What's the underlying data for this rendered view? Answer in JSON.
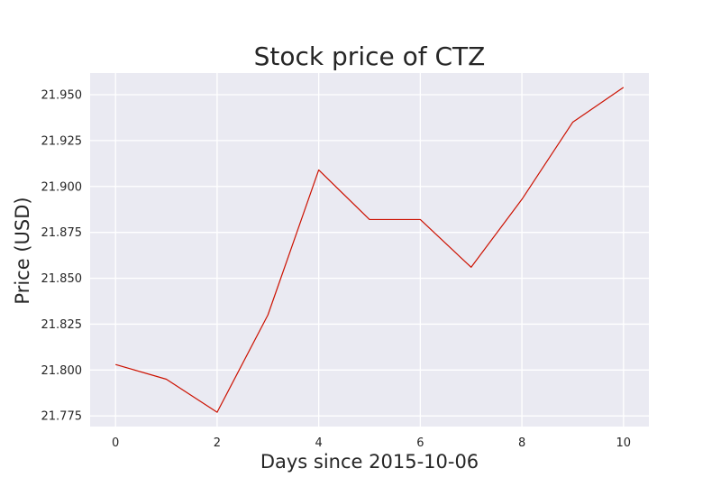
{
  "colors": {
    "background": "#ffffff",
    "plot_background": "#eaeaf2",
    "grid": "#ffffff",
    "line": "#cc1100",
    "text": "#262626"
  },
  "chart_data": {
    "type": "line",
    "title": "Stock price of CTZ",
    "xlabel": "Days since 2015-10-06",
    "ylabel": "Price (USD)",
    "x": [
      0,
      1,
      2,
      3,
      4,
      5,
      6,
      7,
      8,
      9,
      10
    ],
    "series": [
      {
        "values": [
          21.803,
          21.795,
          21.777,
          21.83,
          21.909,
          21.882,
          21.882,
          21.856,
          21.893,
          21.935,
          21.954
        ]
      }
    ],
    "xlim": [
      -0.5,
      10.5
    ],
    "ylim": [
      21.7692,
      21.9618
    ],
    "xticks": [
      0,
      2,
      4,
      6,
      8,
      10
    ],
    "xtick_labels": [
      "0",
      "2",
      "4",
      "6",
      "8",
      "10"
    ],
    "yticks": [
      21.775,
      21.8,
      21.825,
      21.85,
      21.875,
      21.9,
      21.925,
      21.95
    ],
    "ytick_labels": [
      "21.775",
      "21.800",
      "21.825",
      "21.850",
      "21.875",
      "21.900",
      "21.925",
      "21.950"
    ],
    "grid": true,
    "legend": "none"
  }
}
